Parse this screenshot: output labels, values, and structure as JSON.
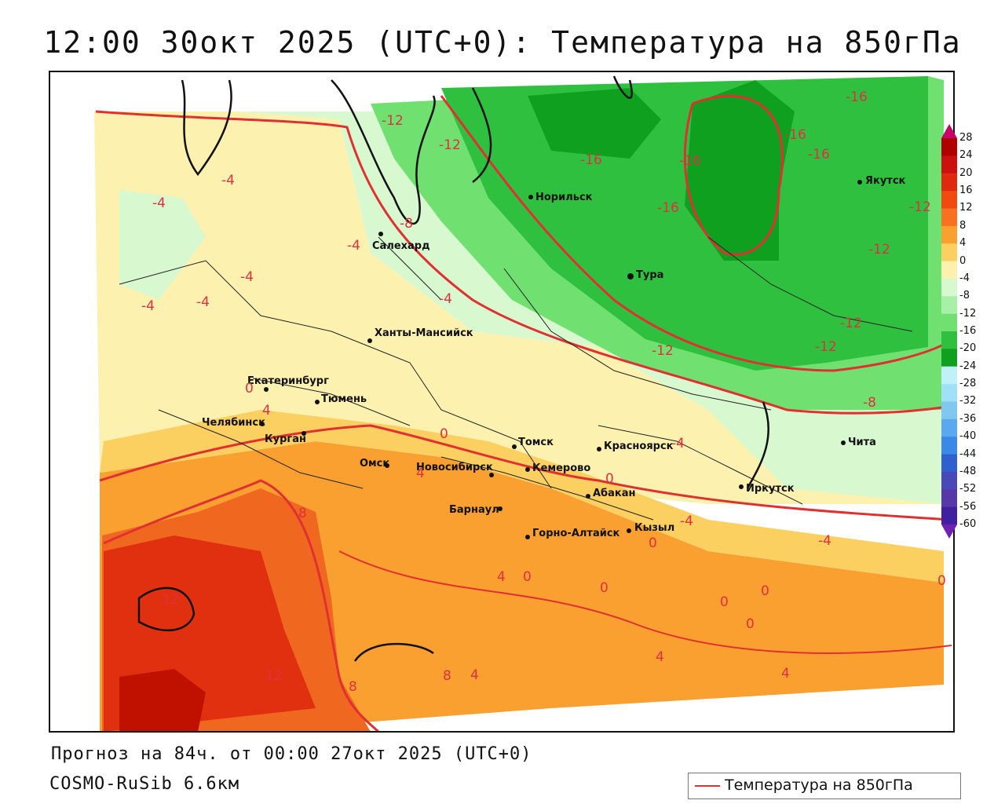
{
  "title": "12:00 30окт 2025 (UTC+0): Температура на 850гПа",
  "forecast_line": "Прогноз на 84ч. от 00:00 27окт 2025 (UTC+0)",
  "model_line": "COSMO-RuSib 6.6км",
  "legend": {
    "label": "Температура на 850гПа",
    "line_color": "#e03030"
  },
  "colorbar": {
    "ticks": [
      "28",
      "24",
      "20",
      "16",
      "12",
      "8",
      "4",
      "0",
      "-4",
      "-8",
      "-12",
      "-16",
      "-20",
      "-24",
      "-28",
      "-32",
      "-36",
      "-40",
      "-44",
      "-48",
      "-52",
      "-56",
      "-60"
    ],
    "colors": [
      "#c8006a",
      "#b00000",
      "#cc1010",
      "#e02810",
      "#f04a10",
      "#f87020",
      "#f9a030",
      "#fbcf60",
      "#fdf1b0",
      "#d8f8d0",
      "#a8f0a8",
      "#70e070",
      "#30c040",
      "#10a020",
      "#c0f0f8",
      "#a0e0f8",
      "#80c8f0",
      "#5aa8f0",
      "#3a88e8",
      "#3060d0",
      "#4848b8",
      "#5838a8",
      "#4020a0",
      "#7020b0"
    ]
  },
  "cities": [
    {
      "name": "Норильск"
    },
    {
      "name": "Якутск"
    },
    {
      "name": "Салехард"
    },
    {
      "name": "Тура"
    },
    {
      "name": "Ханты-Мансийск"
    },
    {
      "name": "Екатеринбург"
    },
    {
      "name": "Тюмень"
    },
    {
      "name": "Челябинск"
    },
    {
      "name": "Курган"
    },
    {
      "name": "Омск"
    },
    {
      "name": "Новосибирск"
    },
    {
      "name": "Томск"
    },
    {
      "name": "Кемерово"
    },
    {
      "name": "Красноярск"
    },
    {
      "name": "Абакан"
    },
    {
      "name": "Барнаул"
    },
    {
      "name": "Горно-Алтайск"
    },
    {
      "name": "Кызыл"
    },
    {
      "name": "Иркутск"
    },
    {
      "name": "Чита"
    }
  ],
  "isotherm_labels": [
    "-12",
    "-12",
    "-16",
    "-16",
    "-16",
    "-16",
    "-16",
    "-16",
    "-4",
    "-4",
    "-8",
    "-4",
    "-4",
    "-4",
    "-4",
    "-4",
    "-4",
    "-12",
    "-12",
    "-12",
    "-12",
    "-12",
    "-8",
    "-4",
    "-4",
    "0",
    "4",
    "0",
    "0",
    "0",
    "4",
    "0",
    "0",
    "0",
    "0",
    "0",
    "4",
    "4",
    "4",
    "8",
    "8",
    "12",
    "12",
    "8",
    "4",
    "0",
    "-4"
  ]
}
